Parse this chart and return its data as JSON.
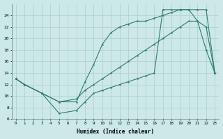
{
  "line1_x": [
    0,
    1,
    3,
    5,
    7,
    8,
    9,
    10,
    11,
    12,
    13,
    14,
    15,
    16,
    17,
    18,
    19,
    20,
    21,
    22,
    23
  ],
  "line1_y": [
    13,
    12,
    10.5,
    7,
    7.5,
    9,
    10.5,
    11,
    11.5,
    12,
    12.5,
    13,
    13.5,
    14,
    25,
    25,
    25,
    25,
    25,
    25,
    14
  ],
  "line2_x": [
    0,
    1,
    3,
    5,
    7,
    8,
    9,
    10,
    11,
    12,
    13,
    14,
    15,
    16,
    17,
    18,
    19,
    20,
    21,
    22,
    23
  ],
  "line2_y": [
    13,
    12,
    10.5,
    9,
    9,
    12.5,
    15.5,
    19,
    21,
    22,
    22.5,
    23,
    23,
    23.5,
    24,
    24.5,
    25,
    25,
    23,
    18,
    14
  ],
  "line3_x": [
    0,
    1,
    3,
    5,
    7,
    8,
    9,
    10,
    11,
    12,
    13,
    14,
    15,
    16,
    17,
    18,
    19,
    20,
    21,
    22,
    23
  ],
  "line3_y": [
    13,
    12,
    10.5,
    9,
    9.5,
    11,
    12,
    13,
    14,
    15,
    16,
    17,
    18,
    19,
    20,
    21,
    22,
    23,
    23,
    22,
    14
  ],
  "color": "#2e7d6c",
  "bg_color": "#cde8e8",
  "grid_color": "#aecece",
  "xlabel": "Humidex (Indice chaleur)",
  "xlim": [
    -0.5,
    23.5
  ],
  "ylim": [
    6,
    26
  ],
  "yticks": [
    6,
    8,
    10,
    12,
    14,
    16,
    18,
    20,
    22,
    24
  ],
  "xticks": [
    0,
    1,
    2,
    3,
    4,
    5,
    6,
    7,
    8,
    9,
    10,
    11,
    12,
    13,
    14,
    15,
    16,
    17,
    18,
    19,
    20,
    21,
    22,
    23
  ]
}
